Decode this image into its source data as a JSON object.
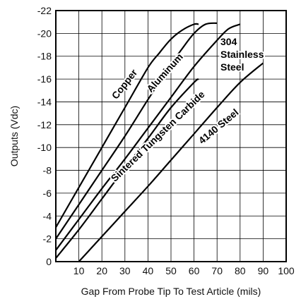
{
  "chart_data": {
    "type": "line",
    "title": "",
    "xlabel": "Gap From Probe Tip To Test Article (mils)",
    "ylabel": "Outputs (Vdc)",
    "xlim": [
      0,
      100
    ],
    "ylim": [
      0,
      -22
    ],
    "x_ticks": [
      10,
      20,
      30,
      40,
      50,
      60,
      70,
      80,
      90,
      100
    ],
    "y_ticks": [
      0,
      -2,
      -4,
      -6,
      -8,
      -10,
      -12,
      -14,
      -16,
      -18,
      -20,
      -22
    ],
    "grid": true,
    "series": [
      {
        "name": "Copper",
        "x": [
          0,
          10,
          20,
          30,
          40,
          45,
          50,
          55,
          60,
          62
        ],
        "y": [
          -3,
          -6.5,
          -10,
          -13.5,
          -17,
          -18.3,
          -19.5,
          -20.3,
          -20.8,
          -20.8
        ]
      },
      {
        "name": "Aluminum",
        "x": [
          0,
          10,
          20,
          30,
          40,
          50,
          55,
          60,
          65,
          70
        ],
        "y": [
          -2,
          -5,
          -8,
          -11,
          -14.2,
          -17.3,
          -18.7,
          -20,
          -20.8,
          -20.9
        ]
      },
      {
        "name": "304 Stainless Steel",
        "x": [
          0,
          10,
          20,
          30,
          40,
          50,
          60,
          70,
          75,
          80
        ],
        "y": [
          -1,
          -3.7,
          -6.4,
          -9,
          -11.7,
          -14.4,
          -17.1,
          -19.4,
          -20.4,
          -20.8
        ]
      },
      {
        "name": "Sintered Tungsten Carbide",
        "x": [
          0,
          10,
          20,
          30,
          40,
          50,
          60,
          62
        ],
        "y": [
          -0.3,
          -2.8,
          -5.5,
          -8.2,
          -10.8,
          -13.5,
          -15.7,
          -16
        ]
      },
      {
        "name": "4140 Steel",
        "x": [
          10,
          20,
          30,
          40,
          50,
          60,
          70,
          80,
          90
        ],
        "y": [
          0,
          -2.2,
          -4.4,
          -6.6,
          -8.9,
          -11.2,
          -13.5,
          -15.7,
          -17.4
        ]
      }
    ],
    "labels": [
      {
        "series": "Copper",
        "lines": [
          "Copper"
        ]
      },
      {
        "series": "Aluminum",
        "lines": [
          "Aluminum"
        ]
      },
      {
        "series": "304 Stainless Steel",
        "lines": [
          "304",
          "Stainless",
          "Steel"
        ]
      },
      {
        "series": "Sintered Tungsten Carbide",
        "lines": [
          "Sintered Tungsten Carbide"
        ]
      },
      {
        "series": "4140 Steel",
        "lines": [
          "4140 Steel"
        ]
      }
    ]
  }
}
